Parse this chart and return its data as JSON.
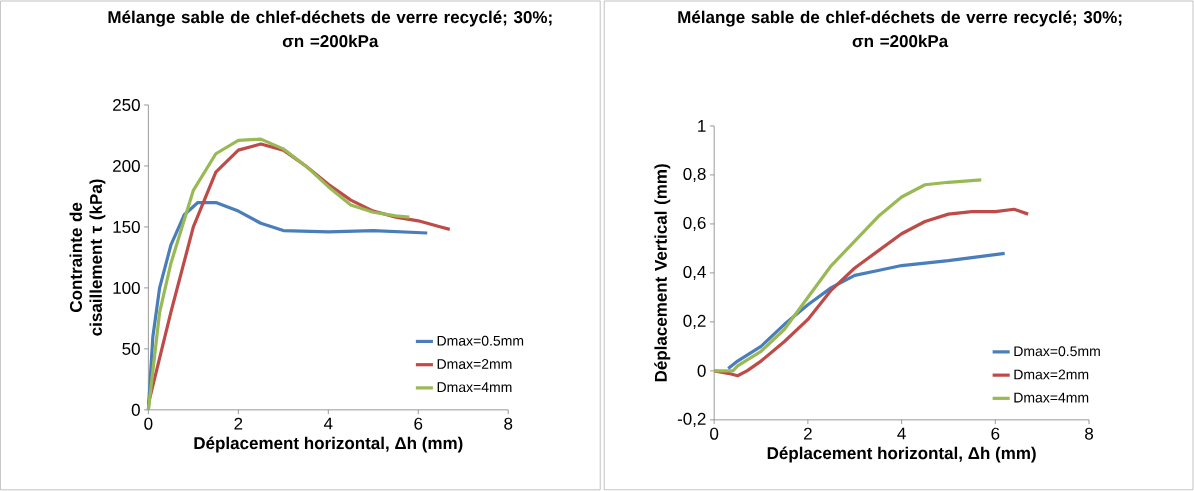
{
  "chart_data": [
    {
      "type": "line",
      "title": "Mélange sable de chlef-déchets de verre recyclé; 30%;",
      "subtitle": "σn =200kPa",
      "xlabel": "Déplacement horizontal, Δh (mm)",
      "ylabel": "Contrainte de cisaillement τ (kPa)",
      "xlim": [
        0,
        8
      ],
      "ylim": [
        0,
        250
      ],
      "xticks": [
        0,
        2,
        4,
        6,
        8
      ],
      "yticks": [
        0,
        50,
        100,
        150,
        200,
        250
      ],
      "legend": "bottom right",
      "series": [
        {
          "name": "Dmax=0.5mm",
          "color": "#4a7ebb",
          "x": [
            0,
            0.1,
            0.25,
            0.5,
            0.8,
            1.1,
            1.5,
            2,
            2.5,
            3,
            4,
            5,
            6.2
          ],
          "values": [
            0,
            60,
            100,
            135,
            160,
            170,
            170,
            163,
            153,
            147,
            146,
            147,
            145
          ]
        },
        {
          "name": "Dmax=2mm",
          "color": "#be4b48",
          "x": [
            0,
            0.5,
            1,
            1.5,
            2,
            2.5,
            3,
            3.5,
            4,
            4.5,
            5,
            5.5,
            6,
            6.5,
            6.7
          ],
          "values": [
            5,
            80,
            150,
            195,
            213,
            218,
            213,
            200,
            185,
            172,
            163,
            158,
            155,
            150,
            148
          ]
        },
        {
          "name": "Dmax=4mm",
          "color": "#98b954",
          "x": [
            0,
            0.25,
            0.5,
            1,
            1.5,
            2,
            2.5,
            3,
            3.5,
            4,
            4.5,
            5,
            5.5,
            5.8
          ],
          "values": [
            0,
            80,
            120,
            180,
            210,
            221,
            222,
            214,
            200,
            183,
            168,
            162,
            159,
            158
          ]
        }
      ]
    },
    {
      "type": "line",
      "title": "Mélange sable de chlef-déchets de verre recyclé; 30%;",
      "subtitle": "σn =200kPa",
      "xlabel": "Déplacement horizontal, Δh (mm)",
      "ylabel": "Déplacement Vertical (mm)",
      "xlim": [
        0,
        8
      ],
      "ylim": [
        -0.2,
        1
      ],
      "xticks": [
        0,
        2,
        4,
        6,
        8
      ],
      "yticks": [
        {
          "value": -0.2,
          "label": "-0,2"
        },
        0,
        {
          "value": 0.2,
          "label": "0,2"
        },
        {
          "value": 0.4,
          "label": "0,4"
        },
        {
          "value": 0.6,
          "label": "0,6"
        },
        {
          "value": 0.8,
          "label": "0,8"
        },
        1
      ],
      "legend": "bottom right",
      "series": [
        {
          "name": "Dmax=0.5mm",
          "color": "#4a7ebb",
          "x": [
            0.3,
            0.5,
            1,
            1.5,
            2,
            2.5,
            3,
            3.5,
            4,
            5,
            6.2
          ],
          "values": [
            0.01,
            0.04,
            0.1,
            0.19,
            0.27,
            0.34,
            0.39,
            0.41,
            0.43,
            0.45,
            0.48
          ]
        },
        {
          "name": "Dmax=2mm",
          "color": "#be4b48",
          "x": [
            0,
            0.3,
            0.5,
            0.7,
            1,
            1.5,
            2,
            2.5,
            3,
            3.5,
            4,
            4.5,
            5,
            5.5,
            6,
            6.4,
            6.7
          ],
          "values": [
            0,
            -0.01,
            -0.02,
            0,
            0.04,
            0.12,
            0.21,
            0.33,
            0.42,
            0.49,
            0.56,
            0.61,
            0.64,
            0.65,
            0.65,
            0.66,
            0.64
          ]
        },
        {
          "name": "Dmax=4mm",
          "color": "#98b954",
          "x": [
            0,
            0.4,
            0.5,
            1,
            1.5,
            2,
            2.5,
            3,
            3.5,
            4,
            4.5,
            5,
            5.7
          ],
          "values": [
            0,
            0,
            0.02,
            0.08,
            0.17,
            0.3,
            0.43,
            0.53,
            0.63,
            0.71,
            0.76,
            0.77,
            0.78
          ]
        }
      ]
    }
  ]
}
